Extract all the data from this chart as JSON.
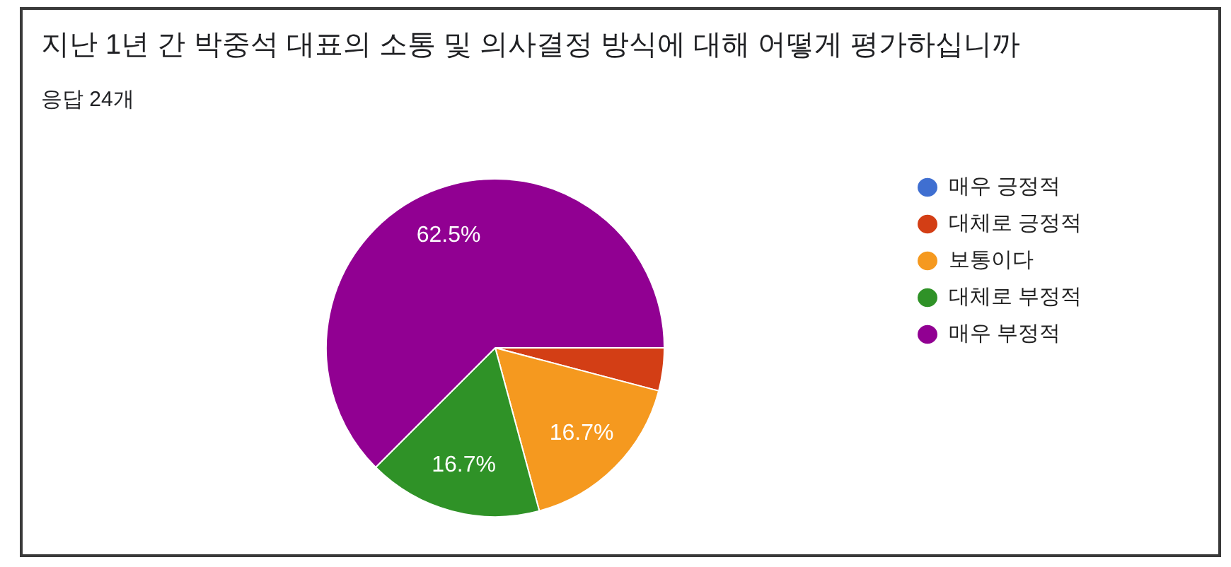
{
  "chart_data": {
    "type": "pie",
    "title": "지난 1년 간 박중석 대표의 소통 및 의사결정 방식에 대해 어떻게 평가하십니까",
    "subtitle": "응답 24개",
    "categories": [
      "매우 긍정적",
      "대체로 긍정적",
      "보통이다",
      "대체로 부정적",
      "매우 부정적"
    ],
    "values": [
      0,
      4.1,
      16.7,
      16.7,
      62.5
    ],
    "colors": [
      "#3f6fd1",
      "#d33e15",
      "#f5991f",
      "#2f9227",
      "#910092"
    ],
    "value_labels": [
      null,
      null,
      "16.7%",
      "16.7%",
      "62.5%"
    ],
    "legend": "right"
  }
}
